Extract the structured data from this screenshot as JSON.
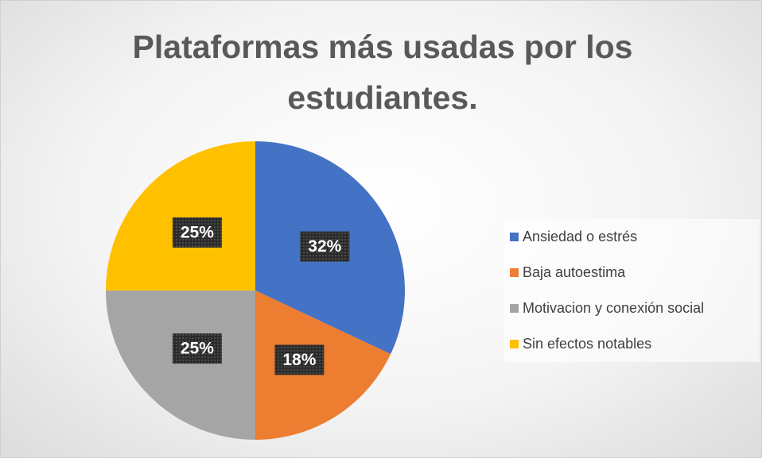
{
  "chart_data": {
    "type": "pie",
    "title": "Plataformas más usadas por los estudiantes.",
    "categories": [
      "Ansiedad o estrés",
      "Baja autoestima",
      "Motivacion y conexión social",
      "Sin efectos notables"
    ],
    "values": [
      32,
      18,
      25,
      25
    ],
    "value_labels": [
      "32%",
      "18%",
      "25%",
      "25%"
    ],
    "colors": [
      "#4472c4",
      "#ed7d31",
      "#a5a5a5",
      "#ffc000"
    ],
    "legend": "right"
  }
}
